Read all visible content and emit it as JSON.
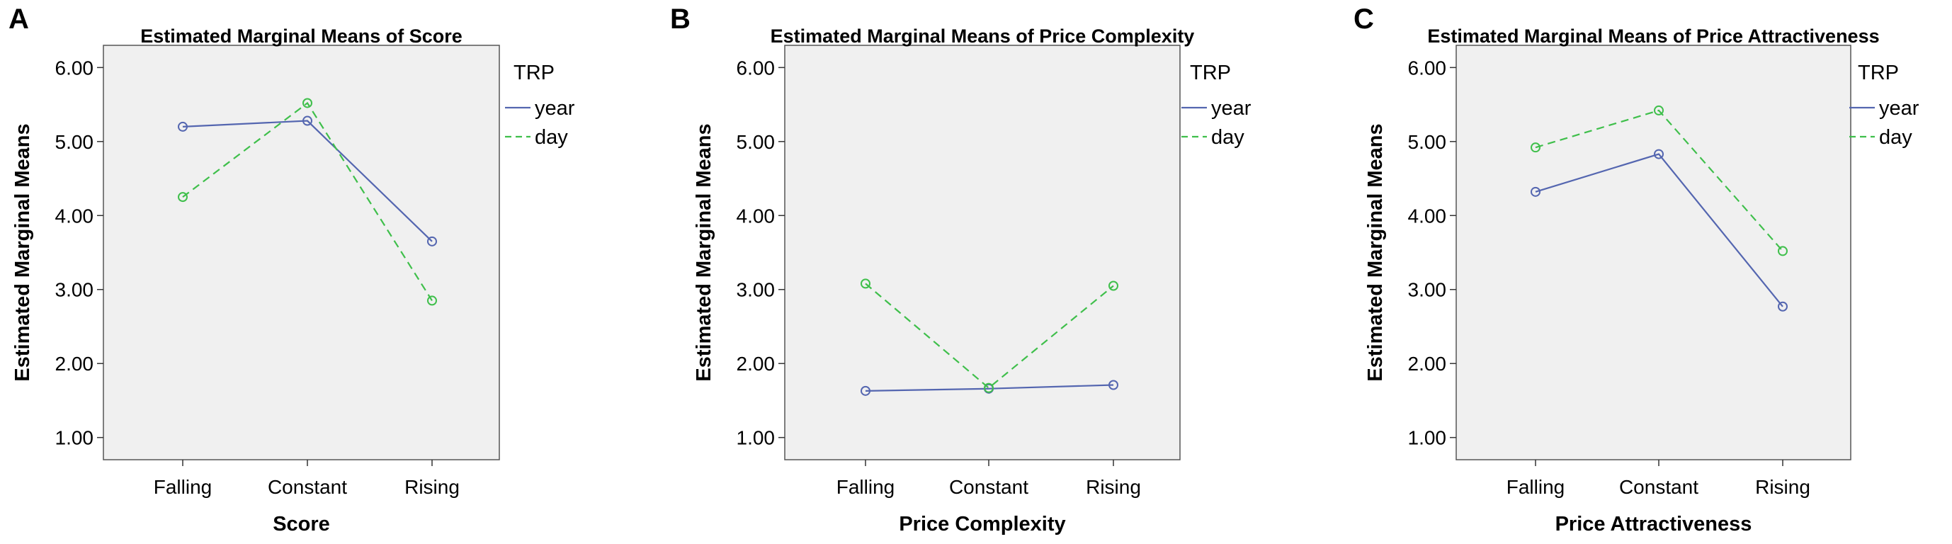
{
  "colors": {
    "plot_bg": "#f0f0f0",
    "frame": "#555555",
    "year_series": "#5466b0",
    "day_series": "#3fbf4b",
    "text": "#000000"
  },
  "chart_data": [
    {
      "panel_letter": "A",
      "type": "line",
      "title": "Estimated Marginal Means of Score",
      "xlabel": "Score",
      "ylabel": "Estimated Marginal Means",
      "categories": [
        "Falling",
        "Constant",
        "Rising"
      ],
      "ylim": [
        0.7,
        6.3
      ],
      "yticks": [
        "1.00",
        "2.00",
        "3.00",
        "4.00",
        "5.00",
        "6.00"
      ],
      "grid": false,
      "legend": {
        "title": "TRP",
        "placement": "right"
      },
      "series": [
        {
          "name": "year",
          "style": "solid",
          "values": [
            5.2,
            5.28,
            3.65
          ]
        },
        {
          "name": "day",
          "style": "dashed",
          "values": [
            4.25,
            5.52,
            2.85
          ]
        }
      ]
    },
    {
      "panel_letter": "B",
      "type": "line",
      "title": "Estimated Marginal Means of Price Complexity",
      "xlabel": "Price Complexity",
      "ylabel": "Estimated Marginal Means",
      "categories": [
        "Falling",
        "Constant",
        "Rising"
      ],
      "ylim": [
        0.7,
        6.3
      ],
      "yticks": [
        "1.00",
        "2.00",
        "3.00",
        "4.00",
        "5.00",
        "6.00"
      ],
      "grid": false,
      "legend": {
        "title": "TRP",
        "placement": "right"
      },
      "series": [
        {
          "name": "year",
          "style": "solid",
          "values": [
            1.63,
            1.66,
            1.71
          ]
        },
        {
          "name": "day",
          "style": "dashed",
          "values": [
            3.08,
            1.67,
            3.05
          ]
        }
      ]
    },
    {
      "panel_letter": "C",
      "type": "line",
      "title": "Estimated Marginal Means of Price Attractiveness",
      "xlabel": "Price Attractiveness",
      "ylabel": "Estimated Marginal Means",
      "categories": [
        "Falling",
        "Constant",
        "Rising"
      ],
      "ylim": [
        0.7,
        6.3
      ],
      "yticks": [
        "1.00",
        "2.00",
        "3.00",
        "4.00",
        "5.00",
        "6.00"
      ],
      "grid": false,
      "legend": {
        "title": "TRP",
        "placement": "right"
      },
      "series": [
        {
          "name": "year",
          "style": "solid",
          "values": [
            4.32,
            4.83,
            2.77
          ]
        },
        {
          "name": "day",
          "style": "dashed",
          "values": [
            4.92,
            5.42,
            3.52
          ]
        }
      ]
    }
  ]
}
